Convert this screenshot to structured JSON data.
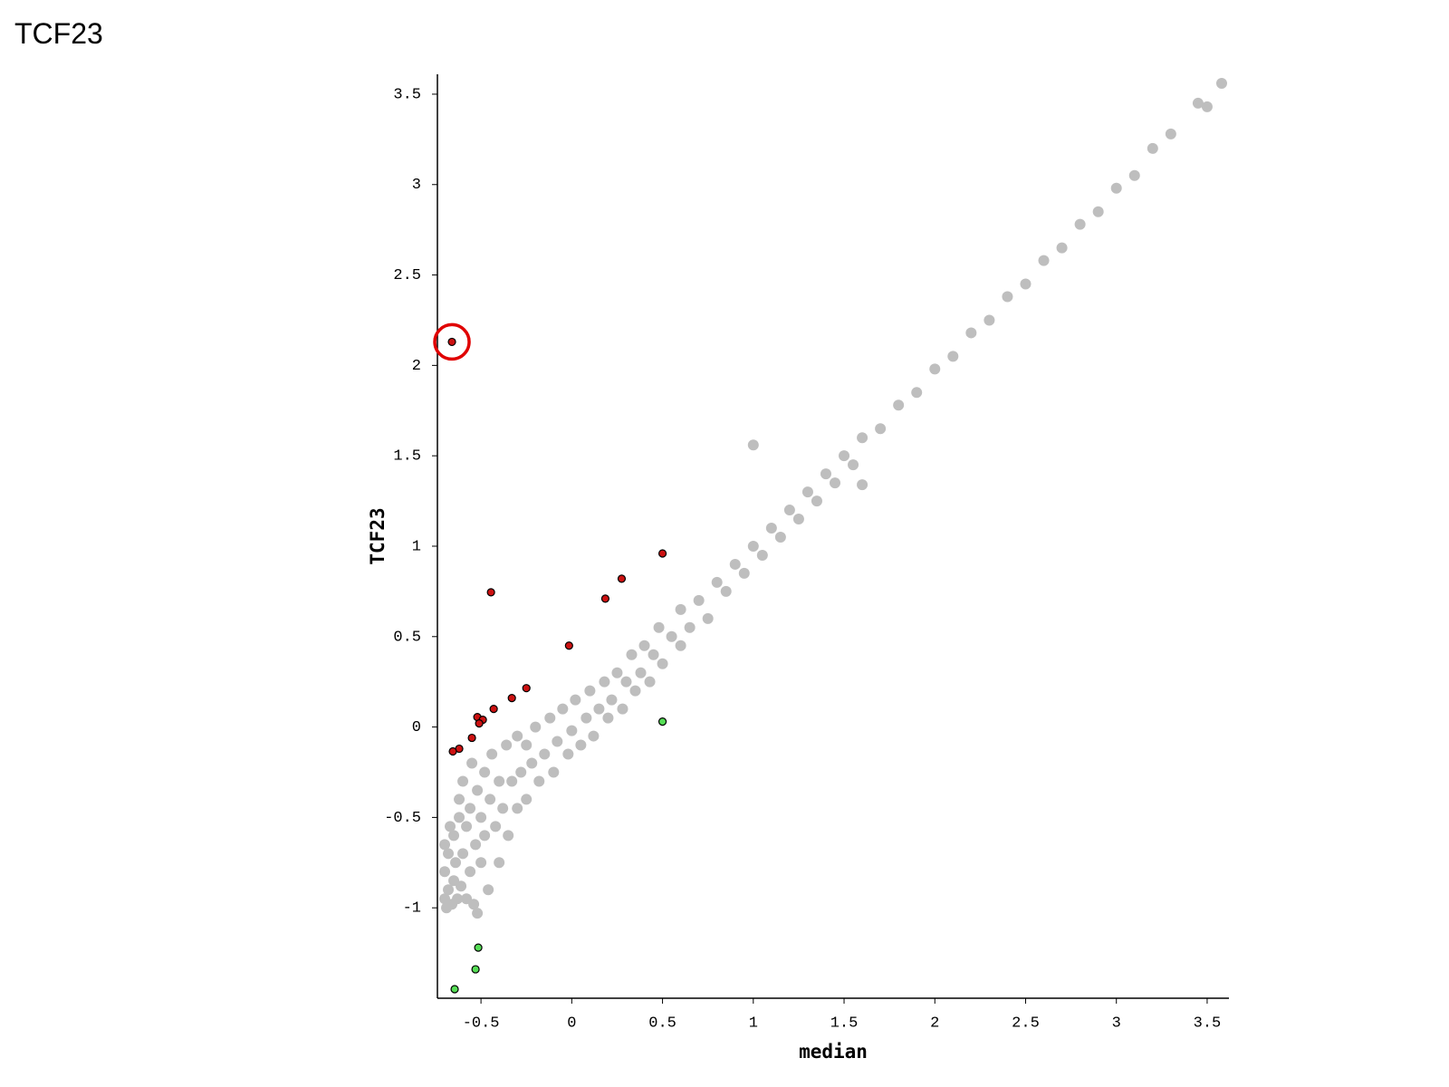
{
  "title": "TCF23",
  "chart_data": {
    "type": "scatter",
    "xlabel": "median",
    "ylabel": "TCF23",
    "xlim": [
      -0.74,
      3.62
    ],
    "ylim": [
      -1.5,
      3.61
    ],
    "xticks": [
      -0.5,
      0,
      0.5,
      1,
      1.5,
      2,
      2.5,
      3,
      3.5
    ],
    "yticks": [
      -1,
      -0.5,
      0,
      0.5,
      1,
      1.5,
      2,
      2.5,
      3,
      3.5
    ],
    "grid": false,
    "series": [
      {
        "color": "#bebebe",
        "x": [
          -0.7,
          -0.7,
          -0.7,
          -0.69,
          -0.68,
          -0.68,
          -0.67,
          -0.66,
          -0.65,
          -0.65,
          -0.64,
          -0.63,
          -0.62,
          -0.62,
          -0.61,
          -0.6,
          -0.6,
          -0.58,
          -0.58,
          -0.56,
          -0.56,
          -0.55,
          -0.54,
          -0.53,
          -0.52,
          -0.52,
          -0.5,
          -0.5,
          -0.48,
          -0.48,
          -0.46,
          -0.45,
          -0.44,
          -0.42,
          -0.4,
          -0.4,
          -0.38,
          -0.36,
          -0.35,
          -0.33,
          -0.3,
          -0.3,
          -0.28,
          -0.25,
          -0.25,
          -0.22,
          -0.2,
          -0.18,
          -0.15,
          -0.12,
          -0.1,
          -0.08,
          -0.05,
          -0.02,
          0,
          0.02,
          0.05,
          0.08,
          0.1,
          0.12,
          0.15,
          0.18,
          0.2,
          0.22,
          0.25,
          0.28,
          0.3,
          0.33,
          0.35,
          0.38,
          0.4,
          0.43,
          0.45,
          0.48,
          0.5,
          0.55,
          0.6,
          0.6,
          0.65,
          0.7,
          0.75,
          0.8,
          0.85,
          0.9,
          0.95,
          1,
          1,
          1.05,
          1.1,
          1.15,
          1.2,
          1.25,
          1.3,
          1.35,
          1.4,
          1.45,
          1.5,
          1.55,
          1.6,
          1.6,
          1.7,
          1.8,
          1.9,
          2,
          2.1,
          2.2,
          2.3,
          2.4,
          2.5,
          2.6,
          2.7,
          2.8,
          2.9,
          3,
          3.1,
          3.2,
          3.3,
          3.45,
          3.5,
          3.58
        ],
        "values": [
          -0.95,
          -0.8,
          -0.65,
          -1.0,
          -0.9,
          -0.7,
          -0.55,
          -0.98,
          -0.85,
          -0.6,
          -0.75,
          -0.95,
          -0.5,
          -0.4,
          -0.88,
          -0.7,
          -0.3,
          -0.95,
          -0.55,
          -0.8,
          -0.45,
          -0.2,
          -0.98,
          -0.65,
          -1.03,
          -0.35,
          -0.75,
          -0.5,
          -0.25,
          -0.6,
          -0.9,
          -0.4,
          -0.15,
          -0.55,
          -0.3,
          -0.75,
          -0.45,
          -0.1,
          -0.6,
          -0.3,
          -0.45,
          -0.05,
          -0.25,
          -0.4,
          -0.1,
          -0.2,
          0,
          -0.3,
          -0.15,
          0.05,
          -0.25,
          -0.08,
          0.1,
          -0.15,
          -0.02,
          0.15,
          -0.1,
          0.05,
          0.2,
          -0.05,
          0.1,
          0.25,
          0.05,
          0.15,
          0.3,
          0.1,
          0.25,
          0.4,
          0.2,
          0.3,
          0.45,
          0.25,
          0.4,
          0.55,
          0.35,
          0.5,
          0.45,
          0.65,
          0.55,
          0.7,
          0.6,
          0.8,
          0.75,
          0.9,
          0.85,
          1.0,
          1.56,
          0.95,
          1.1,
          1.05,
          1.2,
          1.15,
          1.3,
          1.25,
          1.4,
          1.35,
          1.5,
          1.45,
          1.34,
          1.6,
          1.65,
          1.78,
          1.85,
          1.98,
          2.05,
          2.18,
          2.25,
          2.38,
          2.45,
          2.58,
          2.65,
          2.78,
          2.85,
          2.98,
          3.05,
          3.2,
          3.28,
          3.45,
          3.43,
          3.56
        ]
      },
      {
        "color": "#cc1111",
        "x": [
          -0.66,
          -0.445,
          -0.015,
          0.185,
          0.275,
          0.5,
          -0.25,
          -0.33,
          -0.43,
          -0.52,
          -0.49,
          -0.51,
          -0.55,
          -0.62,
          -0.655
        ],
        "values": [
          2.13,
          0.745,
          0.45,
          0.71,
          0.82,
          0.96,
          0.215,
          0.16,
          0.1,
          0.055,
          0.04,
          0.02,
          -0.06,
          -0.12,
          -0.135
        ]
      },
      {
        "color": "#55dd55",
        "x": [
          0.5,
          -0.515,
          -0.53,
          -0.645
        ],
        "values": [
          0.03,
          -1.22,
          -1.34,
          -1.45
        ]
      }
    ]
  }
}
